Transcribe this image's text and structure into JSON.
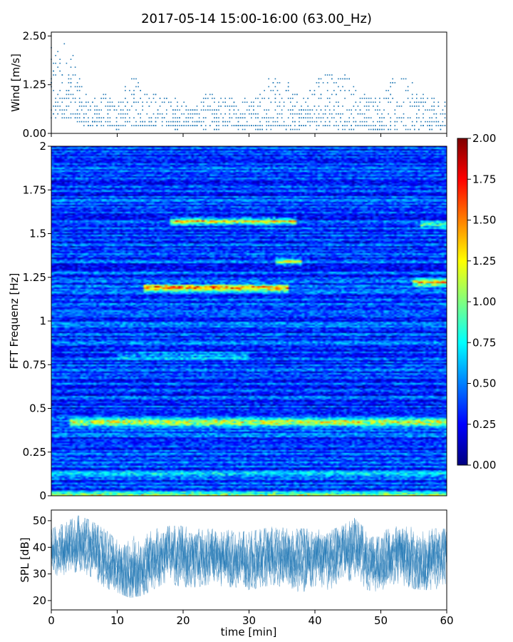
{
  "title": "2017-05-14 15:00-16:00 (63.00_Hz)",
  "chart_data": [
    {
      "panel": "wind",
      "type": "scatter",
      "ylabel": "Wind [m/s]",
      "ylim": [
        0,
        2.6
      ],
      "xlim": [
        0,
        60
      ],
      "y_ticks": [
        "0.00",
        "1.25",
        "2.50"
      ],
      "y_tick_values": [
        0,
        1.25,
        2.5
      ],
      "marker_color": "#1f77b4",
      "x_minutes": [
        0,
        1,
        2,
        3,
        4,
        5,
        6,
        8,
        10,
        12,
        13,
        15,
        17,
        19,
        20,
        22,
        24,
        25,
        27,
        29,
        30,
        32,
        33,
        34,
        36,
        37,
        39,
        40,
        41,
        42,
        44,
        45,
        47,
        48,
        50,
        52,
        54,
        55,
        57,
        59,
        60
      ],
      "max_wind": [
        2.2,
        2.2,
        2.5,
        2.2,
        1.6,
        1.1,
        0.9,
        1.0,
        0.9,
        1.4,
        1.4,
        1.1,
        1.0,
        0.9,
        0.8,
        0.7,
        1.1,
        0.9,
        1.0,
        0.9,
        1.0,
        1.1,
        1.4,
        1.5,
        1.3,
        1.0,
        1.1,
        1.5,
        1.7,
        1.6,
        1.5,
        1.6,
        1.0,
        1.0,
        1.0,
        1.4,
        1.5,
        1.2,
        1.0,
        0.9,
        0.9
      ],
      "min_wind": [
        0.3,
        0.4,
        0.4,
        0.4,
        0.3,
        0.2,
        0.2,
        0.2,
        0.1,
        0.2,
        0.2,
        0.2,
        0.2,
        0.1,
        0.2,
        0.2,
        0.1,
        0.1,
        0.2,
        0.1,
        0.2,
        0.1,
        0.1,
        0.2,
        0.1,
        0.1,
        0.2,
        0.1,
        0.2,
        0.2,
        0.1,
        0.1,
        0.2,
        0.1,
        0.1,
        0.1,
        0.1,
        0.1,
        0.1,
        0.1,
        0.1
      ]
    },
    {
      "panel": "spectrogram",
      "type": "heatmap",
      "ylabel": "FFT Frequenz [Hz]",
      "ylim": [
        0,
        2
      ],
      "xlim": [
        0,
        60
      ],
      "y_ticks": [
        "0",
        "0.25",
        "0.5",
        "0.75",
        "1",
        "1.25",
        "1.5",
        "1.75",
        "2"
      ],
      "y_tick_values": [
        0,
        0.25,
        0.5,
        0.75,
        1,
        1.25,
        1.5,
        1.75,
        2
      ],
      "colormap": "jet",
      "color_range": [
        0,
        2
      ],
      "colorbar_ticks": [
        "0.00",
        "0.25",
        "0.50",
        "0.75",
        "1.00",
        "1.25",
        "1.50",
        "1.75",
        "2.00"
      ],
      "colorbar_tick_values": [
        0,
        0.25,
        0.5,
        0.75,
        1,
        1.25,
        1.5,
        1.75,
        2
      ],
      "background_level": 0.3,
      "features": [
        {
          "freq_hz": 0.0,
          "t_start": 0,
          "t_end": 60,
          "level": 1.2
        },
        {
          "freq_hz": 0.12,
          "t_start": 0,
          "t_end": 60,
          "level": 0.75
        },
        {
          "freq_hz": 0.42,
          "t_start": 3,
          "t_end": 60,
          "level": 1.3
        },
        {
          "freq_hz": 0.8,
          "t_start": 10,
          "t_end": 30,
          "level": 0.7
        },
        {
          "freq_hz": 1.19,
          "t_start": 14,
          "t_end": 36,
          "level": 1.6
        },
        {
          "freq_hz": 1.22,
          "t_start": 55,
          "t_end": 60,
          "level": 1.4
        },
        {
          "freq_hz": 1.34,
          "t_start": 34,
          "t_end": 38,
          "level": 1.1
        },
        {
          "freq_hz": 1.57,
          "t_start": 18,
          "t_end": 37,
          "level": 1.3
        },
        {
          "freq_hz": 1.55,
          "t_start": 56,
          "t_end": 60,
          "level": 1.0
        }
      ]
    },
    {
      "panel": "spl",
      "type": "line",
      "ylabel": "SPL [dB]",
      "xlabel": "time [min]",
      "ylim": [
        16.5,
        54
      ],
      "xlim": [
        0,
        60
      ],
      "x_ticks": [
        "0",
        "10",
        "20",
        "30",
        "40",
        "50",
        "60"
      ],
      "x_tick_values": [
        0,
        10,
        20,
        30,
        40,
        50,
        60
      ],
      "y_ticks": [
        "20",
        "30",
        "40",
        "50"
      ],
      "y_tick_values": [
        20,
        30,
        40,
        50
      ],
      "line_color": "#1f77b4",
      "x_minutes": [
        0,
        2,
        4,
        6,
        8,
        10,
        12,
        14,
        16,
        18,
        20,
        22,
        24,
        26,
        28,
        30,
        32,
        34,
        36,
        38,
        40,
        42,
        44,
        46,
        48,
        50,
        52,
        54,
        56,
        58,
        60
      ],
      "mean_db": [
        38,
        40,
        42,
        40,
        36,
        32,
        30,
        31,
        37,
        38,
        37,
        36,
        37,
        36,
        36,
        35,
        36,
        38,
        36,
        35,
        37,
        36,
        38,
        41,
        35,
        34,
        38,
        37,
        35,
        36,
        36
      ],
      "max_db": [
        47,
        49,
        52,
        50,
        47,
        43,
        44,
        45,
        47,
        48,
        48,
        47,
        47,
        47,
        46,
        46,
        47,
        48,
        47,
        47,
        47,
        46,
        48,
        51,
        46,
        45,
        49,
        48,
        47,
        47,
        47
      ],
      "min_db": [
        27,
        29,
        31,
        29,
        25,
        23,
        21,
        22,
        25,
        26,
        25,
        25,
        26,
        25,
        25,
        24,
        25,
        26,
        24,
        23,
        25,
        24,
        26,
        28,
        24,
        23,
        26,
        25,
        24,
        24,
        25
      ]
    }
  ]
}
